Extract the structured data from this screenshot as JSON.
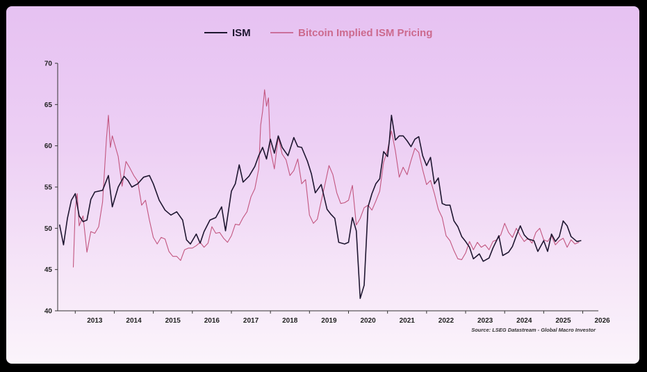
{
  "chart_data": {
    "type": "line",
    "title": "",
    "xlabel": "",
    "ylabel": "",
    "xlim": [
      2012.55,
      2026.4
    ],
    "ylim": [
      40,
      70
    ],
    "x_ticks": [
      "2013",
      "2014",
      "2015",
      "2016",
      "2017",
      "2018",
      "2019",
      "2020",
      "2021",
      "2022",
      "2023",
      "2024",
      "2025",
      "2026"
    ],
    "y_ticks": [
      "40",
      "45",
      "50",
      "55",
      "60",
      "65",
      "70"
    ],
    "grid": false,
    "legend": "top-center",
    "source": "Source: LSEG Datastream - Global Macro Investor",
    "series": [
      {
        "name": "ISM",
        "color": "#1e1630",
        "points": [
          [
            2012.6,
            50.4
          ],
          [
            2012.7,
            48.0
          ],
          [
            2012.8,
            51.2
          ],
          [
            2012.9,
            53.4
          ],
          [
            2013.0,
            54.2
          ],
          [
            2013.1,
            51.5
          ],
          [
            2013.2,
            50.8
          ],
          [
            2013.3,
            51.0
          ],
          [
            2013.4,
            53.5
          ],
          [
            2013.5,
            54.4
          ],
          [
            2013.7,
            54.6
          ],
          [
            2013.85,
            56.4
          ],
          [
            2013.95,
            52.6
          ],
          [
            2014.1,
            55.0
          ],
          [
            2014.25,
            56.3
          ],
          [
            2014.35,
            55.8
          ],
          [
            2014.45,
            55.0
          ],
          [
            2014.6,
            55.4
          ],
          [
            2014.75,
            56.2
          ],
          [
            2014.9,
            56.4
          ],
          [
            2015.0,
            55.4
          ],
          [
            2015.15,
            53.4
          ],
          [
            2015.3,
            52.2
          ],
          [
            2015.45,
            51.6
          ],
          [
            2015.6,
            52.0
          ],
          [
            2015.75,
            51.0
          ],
          [
            2015.85,
            48.6
          ],
          [
            2015.95,
            48.1
          ],
          [
            2016.1,
            49.3
          ],
          [
            2016.2,
            48.2
          ],
          [
            2016.3,
            49.6
          ],
          [
            2016.45,
            51.0
          ],
          [
            2016.6,
            51.3
          ],
          [
            2016.75,
            52.6
          ],
          [
            2016.85,
            49.7
          ],
          [
            2017.0,
            54.5
          ],
          [
            2017.1,
            55.4
          ],
          [
            2017.2,
            57.7
          ],
          [
            2017.3,
            55.6
          ],
          [
            2017.45,
            56.3
          ],
          [
            2017.6,
            57.5
          ],
          [
            2017.7,
            58.8
          ],
          [
            2017.8,
            59.8
          ],
          [
            2017.9,
            58.4
          ],
          [
            2018.0,
            60.8
          ],
          [
            2018.1,
            59.1
          ],
          [
            2018.2,
            61.2
          ],
          [
            2018.3,
            59.8
          ],
          [
            2018.45,
            58.8
          ],
          [
            2018.6,
            61.0
          ],
          [
            2018.7,
            59.9
          ],
          [
            2018.8,
            59.8
          ],
          [
            2018.95,
            58.1
          ],
          [
            2019.05,
            56.6
          ],
          [
            2019.15,
            54.3
          ],
          [
            2019.3,
            55.3
          ],
          [
            2019.45,
            52.3
          ],
          [
            2019.55,
            51.7
          ],
          [
            2019.65,
            51.2
          ],
          [
            2019.75,
            48.3
          ],
          [
            2019.9,
            48.1
          ],
          [
            2020.0,
            48.3
          ],
          [
            2020.1,
            51.3
          ],
          [
            2020.2,
            49.7
          ],
          [
            2020.3,
            41.5
          ],
          [
            2020.4,
            43.1
          ],
          [
            2020.5,
            52.6
          ],
          [
            2020.6,
            54.2
          ],
          [
            2020.7,
            55.4
          ],
          [
            2020.8,
            56.0
          ],
          [
            2020.9,
            59.3
          ],
          [
            2021.0,
            58.7
          ],
          [
            2021.05,
            60.8
          ],
          [
            2021.1,
            63.7
          ],
          [
            2021.2,
            60.7
          ],
          [
            2021.3,
            61.2
          ],
          [
            2021.4,
            61.2
          ],
          [
            2021.5,
            60.6
          ],
          [
            2021.6,
            59.9
          ],
          [
            2021.7,
            60.8
          ],
          [
            2021.8,
            61.1
          ],
          [
            2021.9,
            58.8
          ],
          [
            2022.0,
            57.6
          ],
          [
            2022.1,
            58.6
          ],
          [
            2022.2,
            55.4
          ],
          [
            2022.3,
            56.1
          ],
          [
            2022.4,
            53.0
          ],
          [
            2022.5,
            52.8
          ],
          [
            2022.6,
            52.8
          ],
          [
            2022.7,
            50.9
          ],
          [
            2022.8,
            50.2
          ],
          [
            2022.9,
            49.0
          ],
          [
            2023.0,
            48.4
          ],
          [
            2023.1,
            47.7
          ],
          [
            2023.2,
            46.3
          ],
          [
            2023.35,
            46.9
          ],
          [
            2023.45,
            46.0
          ],
          [
            2023.6,
            46.4
          ],
          [
            2023.7,
            47.6
          ],
          [
            2023.85,
            49.1
          ],
          [
            2023.95,
            46.7
          ],
          [
            2024.1,
            47.1
          ],
          [
            2024.2,
            47.8
          ],
          [
            2024.3,
            49.1
          ],
          [
            2024.4,
            50.3
          ],
          [
            2024.5,
            49.2
          ],
          [
            2024.6,
            48.7
          ],
          [
            2024.75,
            48.5
          ],
          [
            2024.85,
            47.2
          ],
          [
            2025.0,
            48.5
          ],
          [
            2025.1,
            47.2
          ],
          [
            2025.2,
            49.3
          ],
          [
            2025.3,
            48.4
          ],
          [
            2025.4,
            49.0
          ],
          [
            2025.5,
            50.9
          ],
          [
            2025.6,
            50.3
          ],
          [
            2025.7,
            49.0
          ],
          [
            2025.85,
            48.4
          ],
          [
            2025.95,
            48.5
          ]
        ]
      },
      {
        "name": "Bitcoin Implied ISM Pricing",
        "color": "#c2557f",
        "points": [
          [
            2012.95,
            45.3
          ],
          [
            2013.0,
            52.4
          ],
          [
            2013.05,
            54.2
          ],
          [
            2013.1,
            50.3
          ],
          [
            2013.2,
            51.5
          ],
          [
            2013.3,
            47.1
          ],
          [
            2013.4,
            49.6
          ],
          [
            2013.5,
            49.4
          ],
          [
            2013.6,
            50.2
          ],
          [
            2013.7,
            53.2
          ],
          [
            2013.8,
            60.9
          ],
          [
            2013.85,
            63.7
          ],
          [
            2013.9,
            59.8
          ],
          [
            2013.95,
            61.2
          ],
          [
            2014.1,
            58.7
          ],
          [
            2014.2,
            55.1
          ],
          [
            2014.3,
            58.1
          ],
          [
            2014.4,
            57.3
          ],
          [
            2014.5,
            56.4
          ],
          [
            2014.6,
            55.7
          ],
          [
            2014.7,
            52.8
          ],
          [
            2014.8,
            53.4
          ],
          [
            2014.9,
            51.0
          ],
          [
            2015.0,
            48.9
          ],
          [
            2015.1,
            48.1
          ],
          [
            2015.2,
            48.9
          ],
          [
            2015.3,
            48.7
          ],
          [
            2015.4,
            47.2
          ],
          [
            2015.5,
            46.6
          ],
          [
            2015.6,
            46.6
          ],
          [
            2015.7,
            46.1
          ],
          [
            2015.8,
            47.4
          ],
          [
            2015.9,
            47.6
          ],
          [
            2016.0,
            47.6
          ],
          [
            2016.1,
            47.9
          ],
          [
            2016.2,
            48.3
          ],
          [
            2016.3,
            47.7
          ],
          [
            2016.4,
            48.2
          ],
          [
            2016.5,
            50.2
          ],
          [
            2016.6,
            49.4
          ],
          [
            2016.7,
            49.5
          ],
          [
            2016.8,
            48.8
          ],
          [
            2016.9,
            48.3
          ],
          [
            2017.0,
            49.1
          ],
          [
            2017.1,
            50.5
          ],
          [
            2017.2,
            50.4
          ],
          [
            2017.3,
            51.3
          ],
          [
            2017.4,
            52.0
          ],
          [
            2017.5,
            53.8
          ],
          [
            2017.6,
            54.8
          ],
          [
            2017.7,
            57.2
          ],
          [
            2017.75,
            62.5
          ],
          [
            2017.8,
            64.2
          ],
          [
            2017.85,
            66.8
          ],
          [
            2017.9,
            64.8
          ],
          [
            2017.95,
            65.8
          ],
          [
            2018.0,
            59.5
          ],
          [
            2018.1,
            57.2
          ],
          [
            2018.2,
            61.1
          ],
          [
            2018.3,
            59.0
          ],
          [
            2018.4,
            58.3
          ],
          [
            2018.5,
            56.4
          ],
          [
            2018.6,
            57.0
          ],
          [
            2018.7,
            58.4
          ],
          [
            2018.8,
            55.4
          ],
          [
            2018.9,
            55.9
          ],
          [
            2019.0,
            51.6
          ],
          [
            2019.1,
            50.6
          ],
          [
            2019.2,
            51.1
          ],
          [
            2019.3,
            53.3
          ],
          [
            2019.4,
            55.4
          ],
          [
            2019.5,
            57.6
          ],
          [
            2019.6,
            56.5
          ],
          [
            2019.7,
            54.3
          ],
          [
            2019.8,
            53.0
          ],
          [
            2019.9,
            53.1
          ],
          [
            2020.0,
            53.4
          ],
          [
            2020.1,
            55.2
          ],
          [
            2020.2,
            50.4
          ],
          [
            2020.3,
            51.2
          ],
          [
            2020.4,
            52.5
          ],
          [
            2020.5,
            52.8
          ],
          [
            2020.6,
            52.2
          ],
          [
            2020.7,
            53.3
          ],
          [
            2020.8,
            54.5
          ],
          [
            2020.9,
            58.0
          ],
          [
            2021.0,
            59.5
          ],
          [
            2021.1,
            61.8
          ],
          [
            2021.2,
            59.4
          ],
          [
            2021.3,
            56.2
          ],
          [
            2021.4,
            57.4
          ],
          [
            2021.5,
            56.5
          ],
          [
            2021.6,
            58.2
          ],
          [
            2021.7,
            59.7
          ],
          [
            2021.8,
            59.2
          ],
          [
            2021.9,
            57.1
          ],
          [
            2022.0,
            55.3
          ],
          [
            2022.1,
            55.8
          ],
          [
            2022.2,
            54.2
          ],
          [
            2022.3,
            52.3
          ],
          [
            2022.4,
            51.3
          ],
          [
            2022.5,
            49.1
          ],
          [
            2022.6,
            48.5
          ],
          [
            2022.7,
            47.3
          ],
          [
            2022.8,
            46.3
          ],
          [
            2022.9,
            46.2
          ],
          [
            2023.0,
            47.0
          ],
          [
            2023.1,
            48.4
          ],
          [
            2023.2,
            47.4
          ],
          [
            2023.3,
            48.3
          ],
          [
            2023.4,
            47.7
          ],
          [
            2023.5,
            48.0
          ],
          [
            2023.6,
            47.4
          ],
          [
            2023.7,
            48.4
          ],
          [
            2023.8,
            48.6
          ],
          [
            2023.9,
            49.2
          ],
          [
            2024.0,
            50.6
          ],
          [
            2024.1,
            49.5
          ],
          [
            2024.2,
            48.9
          ],
          [
            2024.3,
            50.0
          ],
          [
            2024.4,
            49.1
          ],
          [
            2024.5,
            48.4
          ],
          [
            2024.6,
            48.8
          ],
          [
            2024.7,
            48.2
          ],
          [
            2024.8,
            49.5
          ],
          [
            2024.9,
            50.0
          ],
          [
            2025.0,
            48.6
          ],
          [
            2025.1,
            48.4
          ],
          [
            2025.2,
            49.1
          ],
          [
            2025.3,
            48.0
          ],
          [
            2025.4,
            48.5
          ],
          [
            2025.5,
            48.8
          ],
          [
            2025.6,
            47.7
          ],
          [
            2025.7,
            48.6
          ],
          [
            2025.8,
            48.1
          ],
          [
            2025.9,
            48.3
          ]
        ]
      }
    ]
  }
}
